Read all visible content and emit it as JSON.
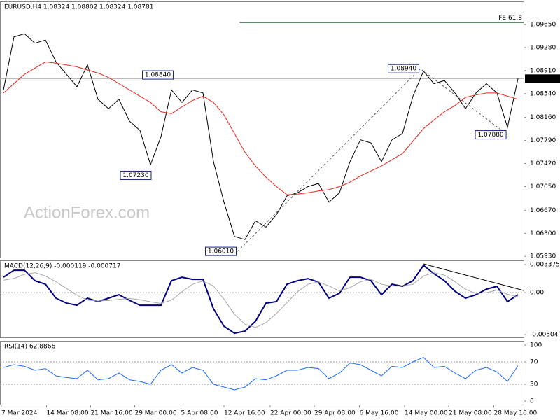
{
  "chart_data": [
    {
      "type": "line",
      "title": "EURUSD,H4  1.08324 1.08802 1.08324 1.08781",
      "watermark": "ActionForex.com",
      "x": [
        0,
        1,
        2,
        3,
        4,
        5,
        6,
        7,
        8,
        9,
        10,
        11,
        12,
        13,
        14,
        15,
        16,
        17,
        18,
        19,
        20,
        21,
        22,
        23,
        24,
        25,
        26,
        27,
        28,
        29,
        30,
        31,
        32,
        33,
        34,
        35,
        36,
        37,
        38,
        39,
        40,
        41,
        42,
        43,
        44,
        45,
        46,
        47,
        48,
        49
      ],
      "series": [
        {
          "color": "#000000",
          "values": [
            1.086,
            1.0945,
            1.095,
            1.0935,
            1.094,
            1.0905,
            1.0885,
            1.0865,
            1.09,
            1.0845,
            1.083,
            1.0845,
            1.081,
            1.0795,
            1.074,
            1.0785,
            1.086,
            1.084,
            1.086,
            1.0855,
            1.0745,
            1.068,
            1.0625,
            1.062,
            1.065,
            1.064,
            1.066,
            1.069,
            1.0695,
            1.0705,
            1.071,
            1.068,
            1.0695,
            1.0745,
            1.078,
            1.0775,
            1.0745,
            1.078,
            1.079,
            1.085,
            1.089,
            1.087,
            1.0875,
            1.0855,
            1.083,
            1.0855,
            1.087,
            1.0855,
            1.08,
            1.0878
          ]
        },
        {
          "color": "#e8261f",
          "values": [
            1.0855,
            1.087,
            1.0885,
            1.0895,
            1.0905,
            1.0903,
            1.09,
            1.0897,
            1.0892,
            1.0887,
            1.088,
            1.087,
            1.086,
            1.085,
            1.084,
            1.0825,
            1.0822,
            1.0833,
            1.0843,
            1.085,
            1.084,
            1.082,
            1.079,
            1.076,
            1.0738,
            1.072,
            1.0705,
            1.0692,
            1.0693,
            1.0695,
            1.0698,
            1.07,
            1.0705,
            1.0712,
            1.0722,
            1.073,
            1.0738,
            1.0748,
            1.0758,
            1.0778,
            1.0798,
            1.0812,
            1.0825,
            1.0835,
            1.0848,
            1.0852,
            1.0855,
            1.0855,
            1.085,
            1.0845
          ]
        }
      ],
      "xlim": [
        -0.33,
        49.53
      ],
      "ylim": [
        1.0591,
        1.1002
      ],
      "yticks": [
        {
          "value": 1.0965,
          "label": "1.09650"
        },
        {
          "value": 1.0928,
          "label": "1.09280"
        },
        {
          "value": 1.0891,
          "label": "1.08910"
        },
        {
          "value": 1.0854,
          "label": "1.08540"
        },
        {
          "value": 1.0816,
          "label": "1.08160"
        },
        {
          "value": 1.0779,
          "label": "1.07790"
        },
        {
          "value": 1.0742,
          "label": "1.07420"
        },
        {
          "value": 1.0705,
          "label": "1.07050"
        },
        {
          "value": 1.0667,
          "label": "1.06670"
        },
        {
          "value": 1.063,
          "label": "1.06300"
        },
        {
          "value": 1.0593,
          "label": "1.05930"
        }
      ],
      "last_price": {
        "value": 1.08781,
        "label": "1.08781"
      },
      "fe_line": {
        "label": "FE 61.8",
        "value": 1.0968,
        "from": 22.5
      },
      "annotations": [
        {
          "label": "1.08840",
          "value": 1.0884,
          "x": 16.3
        },
        {
          "label": "1.07230",
          "value": 1.0723,
          "x": 14.2
        },
        {
          "label": "1.06010",
          "value": 1.0601,
          "x": 22.3
        },
        {
          "label": "1.08940",
          "value": 1.0894,
          "x": 39.7
        },
        {
          "label": "1.07880",
          "value": 1.0788,
          "x": 48
        }
      ]
    },
    {
      "type": "line",
      "title": "MACD(12,26,9) -0.000119 -0.000717",
      "x": [
        0,
        1,
        2,
        3,
        4,
        5,
        6,
        7,
        8,
        9,
        10,
        11,
        12,
        13,
        14,
        15,
        16,
        17,
        18,
        19,
        20,
        21,
        22,
        23,
        24,
        25,
        26,
        27,
        28,
        29,
        30,
        31,
        32,
        33,
        34,
        35,
        36,
        37,
        38,
        39,
        40,
        41,
        42,
        43,
        44,
        45,
        46,
        47,
        48,
        49
      ],
      "series": [
        {
          "color": "#000080",
          "values": [
            0.00185,
            0.00269,
            0.00269,
            0.00143,
            0.00101,
            -0.00067,
            -0.00126,
            -0.00152,
            -0.00067,
            -0.00109,
            -0.00067,
            -0.00025,
            -0.00093,
            -0.00152,
            -0.00152,
            -0.00152,
            0.00143,
            0.00185,
            0.0016,
            0.0016,
            -0.00194,
            -0.00404,
            -0.00488,
            -0.00463,
            -0.00345,
            -0.00126,
            -0.00109,
            0.00101,
            0.00143,
            0.00168,
            0.00126,
            -0.00067,
            -8e-05,
            0.00185,
            0.00185,
            0.00143,
            -0.00025,
            0.00101,
            0.00076,
            0.00143,
            0.00328,
            0.00227,
            0.00143,
            0.00017,
            -0.00067,
            -0.00025,
            0.00042,
            0.00076,
            -0.00109,
            -0.00025
          ]
        },
        {
          "color": "#a8a8a8",
          "values": [
            0.0015,
            0.0017,
            0.0022,
            0.0024,
            0.002,
            0.0013,
            0.0005,
            -0.0003,
            -0.0009,
            -0.001,
            -0.00095,
            -0.0008,
            -0.0007,
            -0.00085,
            -0.0011,
            -0.0013,
            -0.0009,
            0.0001,
            0.001,
            0.0014,
            0.0008,
            -0.0008,
            -0.0026,
            -0.0038,
            -0.0042,
            -0.0036,
            -0.0025,
            -0.0012,
            0.0001,
            0.001,
            0.0013,
            0.0008,
            0.0002,
            0.0006,
            0.0013,
            0.0016,
            0.001,
            0.0008,
            0.0008,
            0.001,
            0.002,
            0.0024,
            0.0021,
            0.0013,
            0.0004,
            -0.0001,
            0,
            0.0003,
            -0.0002,
            -0.0005
          ]
        }
      ],
      "xlim": [
        -0.33,
        49.53
      ],
      "ylim": [
        -0.00538,
        0.00388
      ],
      "yticks": [
        0.003375,
        {
          "value": 0,
          "label": "0.00"
        },
        -0.00504
      ],
      "levels": [
        0
      ]
    },
    {
      "type": "line",
      "title": "RSI(14) 62.8866",
      "x": [
        0,
        1,
        2,
        3,
        4,
        5,
        6,
        7,
        8,
        9,
        10,
        11,
        12,
        13,
        14,
        15,
        16,
        17,
        18,
        19,
        20,
        21,
        22,
        23,
        24,
        25,
        26,
        27,
        28,
        29,
        30,
        31,
        32,
        33,
        34,
        35,
        36,
        37,
        38,
        39,
        40,
        41,
        42,
        43,
        44,
        45,
        46,
        47,
        48,
        49
      ],
      "series": [
        {
          "color": "#1e6cff",
          "values": [
            60,
            65,
            62,
            55,
            58,
            45,
            42,
            40,
            55,
            38,
            40,
            50,
            38,
            35,
            30,
            55,
            65,
            50,
            60,
            55,
            30,
            25,
            20,
            25,
            40,
            38,
            45,
            55,
            55,
            60,
            58,
            40,
            50,
            68,
            65,
            55,
            45,
            62,
            60,
            70,
            78,
            60,
            62,
            50,
            40,
            55,
            60,
            52,
            35,
            63
          ]
        }
      ],
      "xlim": [
        -0.33,
        49.53
      ],
      "ylim": [
        -6.25,
        107.5
      ],
      "yticks": [
        0,
        30,
        70,
        100
      ],
      "levels": [
        30,
        70
      ],
      "xticks": [
        {
          "value": -0.2,
          "label": "7 Mar 2024"
        },
        {
          "value": 4.1,
          "label": "14 Mar 08:00"
        },
        {
          "value": 8.3,
          "label": "21 Mar 16:00"
        },
        {
          "value": 12.5,
          "label": "29 Mar 00:00"
        },
        {
          "value": 16.9,
          "label": "5 Apr 08:00"
        },
        {
          "value": 21,
          "label": "12 Apr 16:00"
        },
        {
          "value": 25.4,
          "label": "22 Apr 00:00"
        },
        {
          "value": 29.6,
          "label": "29 Apr 08:00"
        },
        {
          "value": 33.9,
          "label": "6 May 16:00"
        },
        {
          "value": 38.2,
          "label": "14 May 00:00"
        },
        {
          "value": 42.4,
          "label": "21 May 08:00"
        },
        {
          "value": 46.7,
          "label": "28 May 16:00"
        }
      ]
    }
  ]
}
